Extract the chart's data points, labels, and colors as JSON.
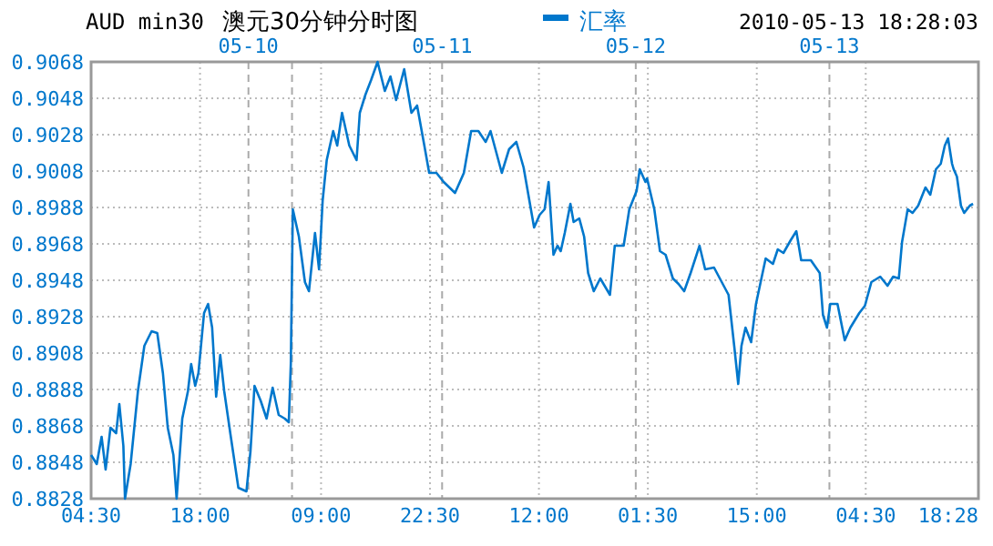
{
  "chart_data": {
    "type": "line",
    "title": "AUD min30",
    "subtitle": "澳元30分钟分时图",
    "annotations": [
      "2010-05-13 18:28:03"
    ],
    "legend": "top",
    "grid": true,
    "marker": "none",
    "line_style": "solid",
    "xlim": [
      "2010-05-09T04:30",
      "2010-05-13T18:28"
    ],
    "ylim": [
      0.8828,
      0.9068
    ],
    "xticks": [
      {
        "value": "2010-05-09T04:30",
        "label": "04:30"
      },
      {
        "value": "2010-05-09T18:00",
        "label": "18:00"
      },
      {
        "value": "2010-05-10T09:00",
        "label": "09:00"
      },
      {
        "value": "2010-05-10T22:30",
        "label": "22:30"
      },
      {
        "value": "2010-05-11T12:00",
        "label": "12:00"
      },
      {
        "value": "2010-05-12T01:30",
        "label": "01:30"
      },
      {
        "value": "2010-05-12T15:00",
        "label": "15:00"
      },
      {
        "value": "2010-05-13T04:30",
        "label": "04:30"
      },
      {
        "value": "2010-05-13T18:28",
        "label": "18:28"
      }
    ],
    "yticks": [
      {
        "value": 0.8828,
        "label": "0.8828"
      },
      {
        "value": 0.8848,
        "label": "0.8848"
      },
      {
        "value": 0.8868,
        "label": "0.8868"
      },
      {
        "value": 0.8888,
        "label": "0.8888"
      },
      {
        "value": 0.8908,
        "label": "0.8908"
      },
      {
        "value": 0.8928,
        "label": "0.8928"
      },
      {
        "value": 0.8948,
        "label": "0.8948"
      },
      {
        "value": 0.8968,
        "label": "0.8968"
      },
      {
        "value": 0.8988,
        "label": "0.8988"
      },
      {
        "value": 0.9008,
        "label": "0.9008"
      },
      {
        "value": 0.9028,
        "label": "0.9028"
      },
      {
        "value": 0.9048,
        "label": "0.9048"
      },
      {
        "value": 0.9068,
        "label": "0.9068"
      }
    ],
    "ref_lines": [
      {
        "axis": "x",
        "value": "2010-05-10",
        "label": "05-10",
        "color": "#aaaaaa",
        "line_style": "dashed"
      },
      {
        "axis": "x",
        "value": "2010-05-10T05:24",
        "color": "#aaaaaa",
        "line_style": "dashed"
      },
      {
        "axis": "x",
        "value": "2010-05-11",
        "label": "05-11",
        "color": "#aaaaaa",
        "line_style": "dashed"
      },
      {
        "axis": "x",
        "value": "2010-05-12",
        "label": "05-12",
        "color": "#aaaaaa",
        "line_style": "dashed"
      },
      {
        "axis": "x",
        "value": "2010-05-13",
        "label": "05-13",
        "color": "#aaaaaa",
        "line_style": "dashed"
      }
    ],
    "series": [
      {
        "name": "汇率",
        "color": "#0077cc",
        "x": [
          "2010-05-09T04:30",
          "2010-05-09T05:12",
          "2010-05-09T05:48",
          "2010-05-09T06:18",
          "2010-05-09T06:54",
          "2010-05-09T07:36",
          "2010-05-09T08:00",
          "2010-05-09T08:30",
          "2010-05-09T08:42",
          "2010-05-09T09:24",
          "2010-05-09T10:18",
          "2010-05-09T11:06",
          "2010-05-09T12:00",
          "2010-05-09T12:42",
          "2010-05-09T13:24",
          "2010-05-09T14:00",
          "2010-05-09T14:42",
          "2010-05-09T15:06",
          "2010-05-09T15:48",
          "2010-05-09T16:30",
          "2010-05-09T16:54",
          "2010-05-09T17:24",
          "2010-05-09T17:48",
          "2010-05-09T18:30",
          "2010-05-09T19:00",
          "2010-05-09T19:30",
          "2010-05-09T20:00",
          "2010-05-09T20:30",
          "2010-05-09T21:00",
          "2010-05-09T21:45",
          "2010-05-09T22:45",
          "2010-05-09T23:45",
          "2010-05-10T00:15",
          "2010-05-10T00:45",
          "2010-05-10T01:30",
          "2010-05-10T02:15",
          "2010-05-10T03:00",
          "2010-05-10T03:45",
          "2010-05-10T04:30",
          "2010-05-10T05:00",
          "2010-05-10T05:15",
          "2010-05-10T05:30",
          "2010-05-10T06:15",
          "2010-05-10T07:00",
          "2010-05-10T07:30",
          "2010-05-10T08:15",
          "2010-05-10T08:45",
          "2010-05-10T09:12",
          "2010-05-10T09:42",
          "2010-05-10T10:30",
          "2010-05-10T11:00",
          "2010-05-10T11:36",
          "2010-05-10T12:30",
          "2010-05-10T13:24",
          "2010-05-10T13:48",
          "2010-05-10T14:30",
          "2010-05-10T15:12",
          "2010-05-10T16:00",
          "2010-05-10T16:54",
          "2010-05-10T17:36",
          "2010-05-10T18:18",
          "2010-05-10T19:18",
          "2010-05-10T20:12",
          "2010-05-10T20:54",
          "2010-05-10T21:48",
          "2010-05-10T22:24",
          "2010-05-10T23:18",
          "2010-05-11T00:12",
          "2010-05-11T01:36",
          "2010-05-11T02:42",
          "2010-05-11T03:36",
          "2010-05-11T04:30",
          "2010-05-11T05:24",
          "2010-05-11T06:00",
          "2010-05-11T07:24",
          "2010-05-11T08:18",
          "2010-05-11T09:12",
          "2010-05-11T10:06",
          "2010-05-11T11:24",
          "2010-05-11T12:06",
          "2010-05-11T12:42",
          "2010-05-11T13:12",
          "2010-05-11T13:48",
          "2010-05-11T14:18",
          "2010-05-11T14:42",
          "2010-05-11T15:12",
          "2010-05-11T15:54",
          "2010-05-11T16:18",
          "2010-05-11T17:00",
          "2010-05-11T17:36",
          "2010-05-11T18:06",
          "2010-05-11T18:48",
          "2010-05-11T19:36",
          "2010-05-11T20:48",
          "2010-05-11T21:24",
          "2010-05-11T22:30",
          "2010-05-11T23:12",
          "2010-05-12T00:06",
          "2010-05-12T00:30",
          "2010-05-12T01:12",
          "2010-05-12T01:24",
          "2010-05-12T02:18",
          "2010-05-12T03:00",
          "2010-05-12T03:42",
          "2010-05-12T04:36",
          "2010-05-12T05:18",
          "2010-05-12T06:00",
          "2010-05-12T06:48",
          "2010-05-12T07:54",
          "2010-05-12T08:36",
          "2010-05-12T09:42",
          "2010-05-12T10:54",
          "2010-05-12T11:30",
          "2010-05-12T12:12",
          "2010-05-12T12:42",
          "2010-05-12T13:06",
          "2010-05-12T13:36",
          "2010-05-12T14:18",
          "2010-05-12T14:54",
          "2010-05-12T16:06",
          "2010-05-12T17:00",
          "2010-05-12T17:36",
          "2010-05-12T18:18",
          "2010-05-12T19:12",
          "2010-05-12T19:54",
          "2010-05-12T20:30",
          "2010-05-12T21:42",
          "2010-05-12T22:48",
          "2010-05-12T23:12",
          "2010-05-12T23:42",
          "2010-05-13T00:06",
          "2010-05-13T01:00",
          "2010-05-13T01:54",
          "2010-05-13T02:36",
          "2010-05-13T03:42",
          "2010-05-13T04:24",
          "2010-05-13T05:12",
          "2010-05-13T06:18",
          "2010-05-13T07:12",
          "2010-05-13T07:54",
          "2010-05-13T08:36",
          "2010-05-13T09:00",
          "2010-05-13T09:42",
          "2010-05-13T10:18",
          "2010-05-13T11:00",
          "2010-05-13T11:54",
          "2010-05-13T12:30",
          "2010-05-13T13:12",
          "2010-05-13T13:48",
          "2010-05-13T14:18",
          "2010-05-13T14:42",
          "2010-05-13T15:12",
          "2010-05-13T15:24",
          "2010-05-13T15:48",
          "2010-05-13T16:18",
          "2010-05-13T16:42",
          "2010-05-13T17:24",
          "2010-05-13T17:48"
        ],
        "values": [
          0.8852,
          0.8847,
          0.8862,
          0.8844,
          0.8867,
          0.8864,
          0.888,
          0.8857,
          0.8828,
          0.8847,
          0.8887,
          0.8912,
          0.892,
          0.8919,
          0.8897,
          0.8867,
          0.8852,
          0.8828,
          0.8872,
          0.8887,
          0.8902,
          0.889,
          0.8897,
          0.893,
          0.8935,
          0.8922,
          0.8884,
          0.8907,
          0.8887,
          0.8864,
          0.8834,
          0.8832,
          0.8854,
          0.889,
          0.8882,
          0.8872,
          0.8889,
          0.8874,
          0.8872,
          0.887,
          0.8902,
          0.8987,
          0.8972,
          0.8947,
          0.8942,
          0.8974,
          0.8954,
          0.8992,
          0.9014,
          0.903,
          0.9022,
          0.904,
          0.9022,
          0.9014,
          0.904,
          0.905,
          0.9058,
          0.9068,
          0.9052,
          0.906,
          0.9047,
          0.9064,
          0.904,
          0.9044,
          0.9022,
          0.9007,
          0.9007,
          0.9002,
          0.8996,
          0.9007,
          0.903,
          0.903,
          0.9024,
          0.903,
          0.9007,
          0.902,
          0.9024,
          0.901,
          0.8977,
          0.8984,
          0.8987,
          0.9002,
          0.8962,
          0.8967,
          0.8964,
          0.8974,
          0.899,
          0.898,
          0.8982,
          0.8972,
          0.8952,
          0.8942,
          0.8949,
          0.894,
          0.8967,
          0.8967,
          0.8987,
          0.8997,
          0.9009,
          0.9002,
          0.9004,
          0.8987,
          0.8964,
          0.8962,
          0.8949,
          0.8946,
          0.8942,
          0.8952,
          0.8967,
          0.8954,
          0.8955,
          0.8945,
          0.894,
          0.8912,
          0.8891,
          0.8912,
          0.8922,
          0.8914,
          0.8935,
          0.896,
          0.8957,
          0.8965,
          0.8963,
          0.897,
          0.8975,
          0.8959,
          0.8959,
          0.8952,
          0.8929,
          0.8922,
          0.8935,
          0.8935,
          0.8915,
          0.8922,
          0.893,
          0.8934,
          0.8947,
          0.895,
          0.8945,
          0.895,
          0.8949,
          0.8969,
          0.8987,
          0.8985,
          0.8989,
          0.8999,
          0.8995,
          0.9009,
          0.9012,
          0.9022,
          0.9026,
          0.9012,
          0.9009,
          0.9005,
          0.8989,
          0.8985,
          0.8989,
          0.899
        ]
      }
    ]
  }
}
